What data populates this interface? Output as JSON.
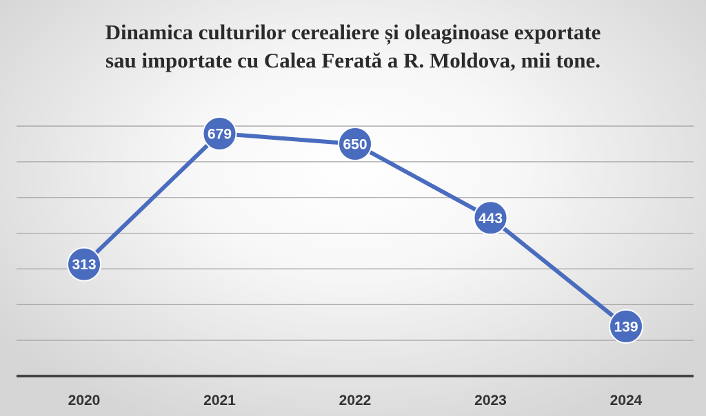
{
  "chart_data": {
    "type": "line",
    "title_lines": [
      "Dinamica culturilor cerealiere și oleaginoase exportate",
      "sau importate cu Calea Ferată a R. Moldova, mii tone."
    ],
    "categories": [
      "2020",
      "2021",
      "2022",
      "2023",
      "2024"
    ],
    "series": [
      {
        "values": [
          313,
          679,
          650,
          443,
          139
        ],
        "data_labels": [
          "313",
          "679",
          "650",
          "443",
          "139"
        ],
        "color": "#4a6cbf"
      }
    ],
    "ylim": [
      0,
      700
    ],
    "ytick_step": 100,
    "show_y_tick_labels": false,
    "grid": true,
    "legend": "none",
    "colors": {
      "line": "#4a6cbf",
      "marker": "#4a6cbf",
      "marker_stroke": "#ffffff",
      "data_label": "#ffffff",
      "gridline": "#a6a6a6",
      "axis": "#3a3a3a",
      "tick_label": "#333333"
    }
  }
}
